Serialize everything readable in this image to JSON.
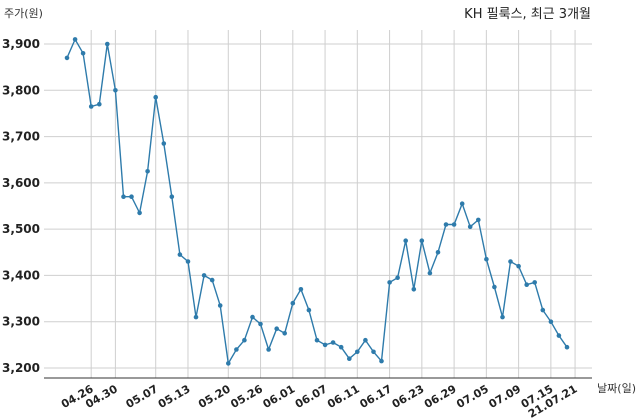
{
  "chart_data": {
    "type": "line",
    "title": "KH 필룩스, 최근 3개월",
    "ylabel": "주가(원)",
    "xlabel": "날짜(일)",
    "ylim": [
      3200,
      3900
    ],
    "yticks": [
      3200,
      3300,
      3400,
      3500,
      3600,
      3700,
      3800,
      3900
    ],
    "ytick_labels": [
      "3,200",
      "3,300",
      "3,400",
      "3,500",
      "3,600",
      "3,700",
      "3,800",
      "3,900"
    ],
    "grid": true,
    "color": "#2e7bab",
    "xtick_labels": [
      "04.26",
      "04.30",
      "05.07",
      "05.13",
      "05.20",
      "05.26",
      "06.01",
      "06.07",
      "06.11",
      "06.17",
      "06.23",
      "06.29",
      "07.05",
      "07.09",
      "07.15",
      "21.07.21"
    ],
    "xtick_index": [
      3,
      6,
      11,
      15,
      20,
      24,
      28,
      32,
      36,
      40,
      44,
      48,
      52,
      56,
      60,
      63
    ],
    "values": [
      3870,
      3910,
      3880,
      3765,
      3770,
      3900,
      3800,
      3570,
      3570,
      3535,
      3625,
      3785,
      3685,
      3570,
      3445,
      3430,
      3310,
      3400,
      3390,
      3335,
      3210,
      3240,
      3260,
      3310,
      3295,
      3240,
      3285,
      3275,
      3340,
      3370,
      3325,
      3260,
      3250,
      3255,
      3245,
      3220,
      3235,
      3260,
      3235,
      3215,
      3385,
      3395,
      3475,
      3370,
      3475,
      3405,
      3450,
      3510,
      3510,
      3555,
      3505,
      3520,
      3435,
      3375,
      3310,
      3430,
      3420,
      3380,
      3385,
      3325,
      3300,
      3270,
      3245
    ]
  }
}
